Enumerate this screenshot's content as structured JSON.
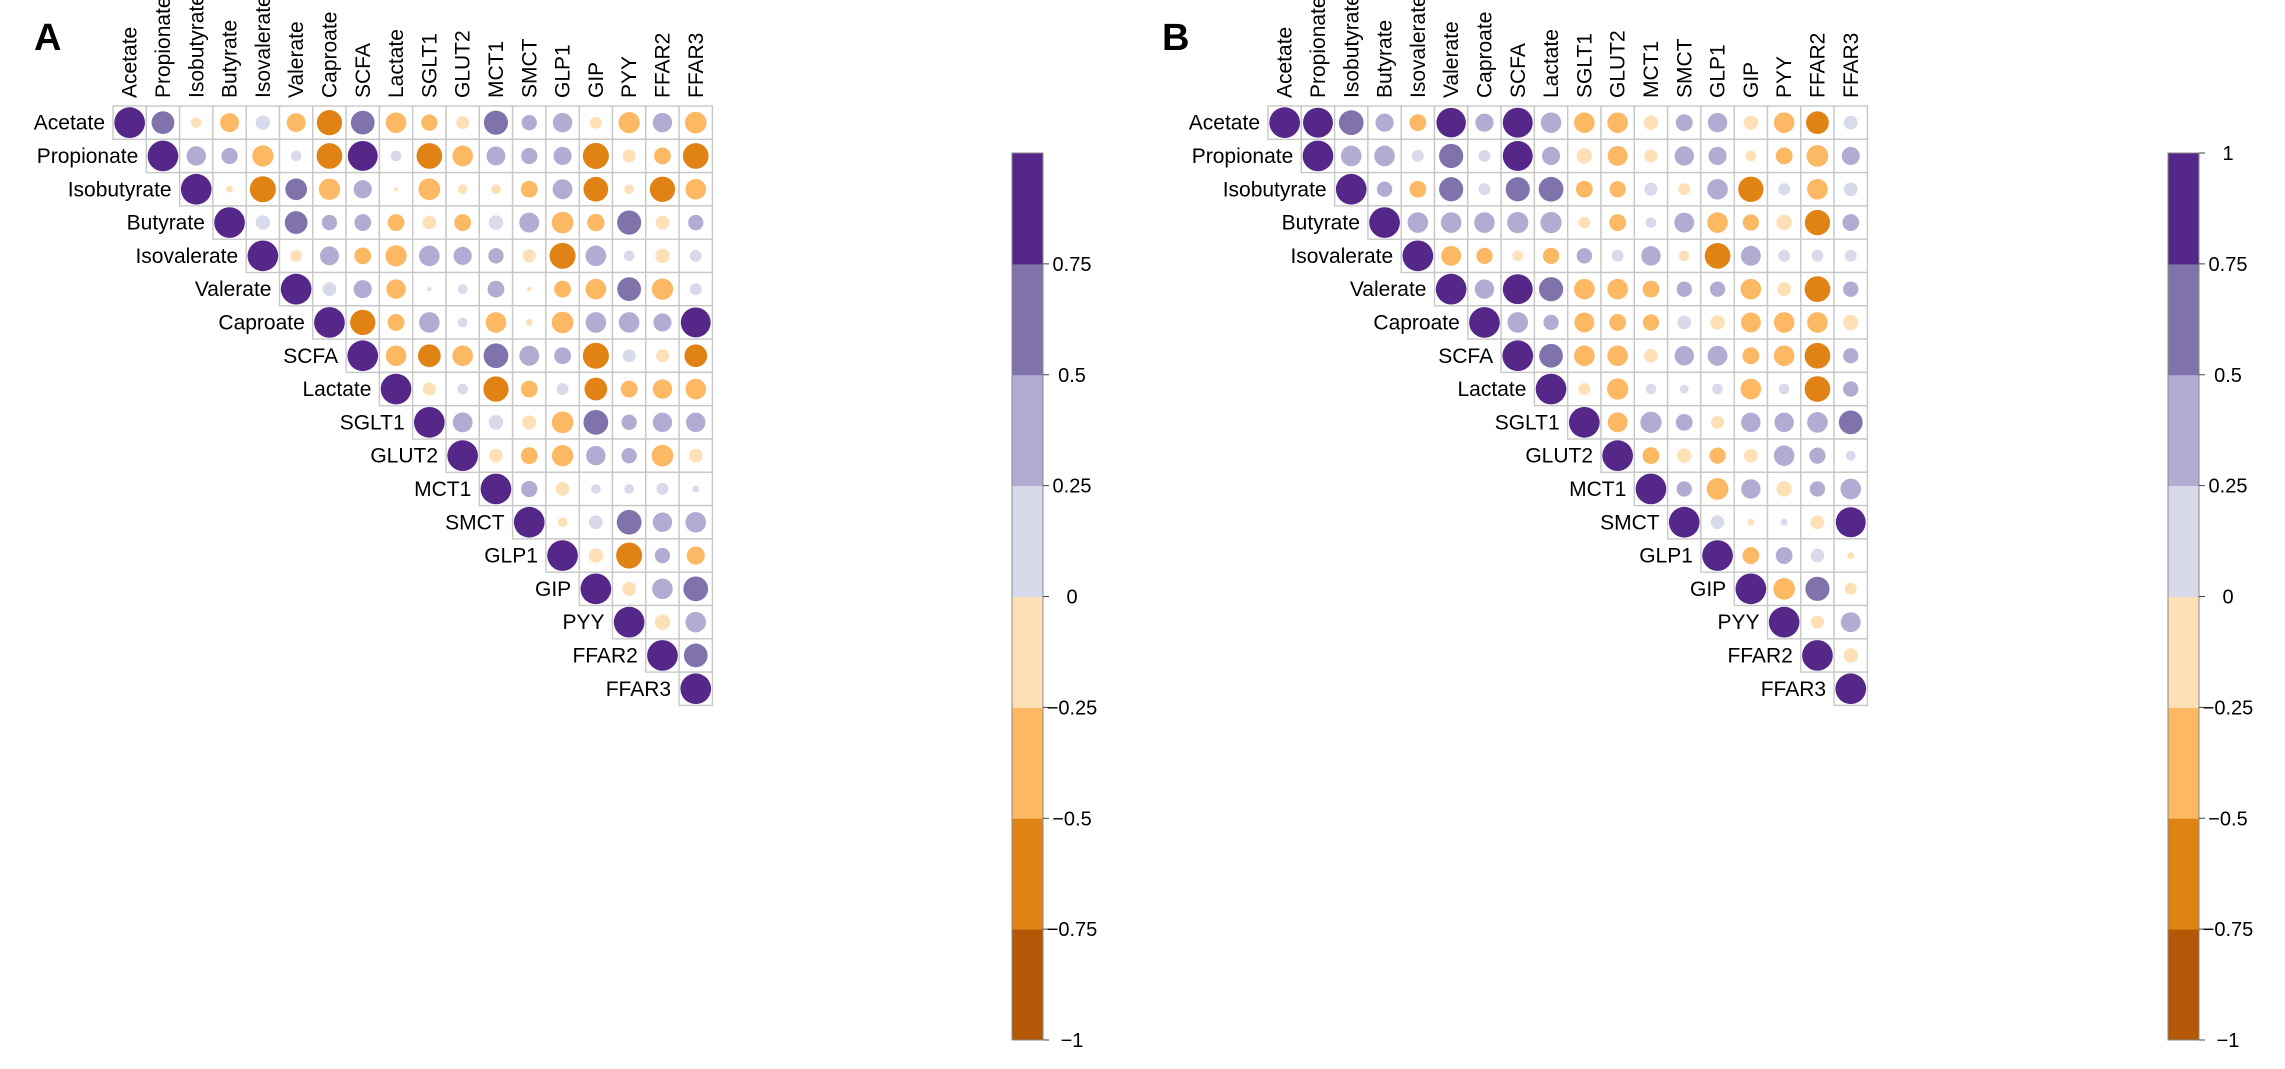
{
  "colors": {
    "bin_colors": [
      "#b35806",
      "#e08214",
      "#fdb863",
      "#fee0b6",
      "#d8daeb",
      "#b2abd2",
      "#8073ac",
      "#542788"
    ],
    "grid": "#c8c8c8",
    "background": "#ffffff"
  },
  "chart_data": [
    {
      "type": "heatmap",
      "subtype": "correlation-circle-upper-triangle",
      "panel_label": "A",
      "variables": [
        "Acetate",
        "Propionate",
        "Isobutyrate",
        "Butyrate",
        "Isovalerate",
        "Valerate",
        "Caproate",
        "SCFA",
        "Lactate",
        "SGLT1",
        "GLUT2",
        "MCT1",
        "SMCT",
        "GLP1",
        "GIP",
        "PYY",
        "FFAR2",
        "FFAR3"
      ],
      "colorbar": {
        "range": [
          -1,
          1
        ],
        "ticks": [
          0.75,
          0.5,
          0.25,
          0,
          -0.25,
          -0.5,
          -0.75,
          -1
        ],
        "tick_labels": [
          "0.75",
          "0.5",
          "0.25",
          "0",
          "−0.25",
          "−0.5",
          "−0.75",
          "−1"
        ]
      },
      "matrix": [
        [
          1,
          0.55,
          -0.12,
          -0.38,
          0.22,
          -0.38,
          -0.68,
          0.6,
          -0.45,
          -0.28,
          -0.18,
          0.62,
          0.25,
          0.4,
          -0.15,
          -0.48,
          0.4,
          -0.5
        ],
        [
          null,
          1,
          0.4,
          0.28,
          -0.48,
          0.12,
          -0.7,
          0.95,
          0.12,
          -0.7,
          -0.45,
          0.38,
          0.28,
          0.35,
          -0.72,
          -0.18,
          -0.3,
          -0.7
        ],
        [
          null,
          null,
          1,
          -0.05,
          -0.72,
          0.5,
          -0.48,
          0.35,
          -0.02,
          -0.5,
          -0.1,
          -0.1,
          -0.3,
          0.42,
          -0.65,
          -0.1,
          -0.68,
          -0.45
        ],
        [
          null,
          null,
          null,
          1,
          0.22,
          0.55,
          0.25,
          0.3,
          -0.3,
          -0.2,
          -0.3,
          0.22,
          0.42,
          -0.5,
          -0.32,
          0.62,
          -0.2,
          0.25
        ],
        [
          null,
          null,
          null,
          null,
          1,
          -0.15,
          0.38,
          -0.3,
          -0.48,
          0.45,
          0.35,
          0.25,
          -0.18,
          -0.72,
          0.45,
          0.12,
          -0.22,
          0.15
        ],
        [
          null,
          null,
          null,
          null,
          null,
          1,
          0.2,
          0.35,
          -0.4,
          0.02,
          0.1,
          0.3,
          -0.02,
          -0.3,
          -0.45,
          0.6,
          -0.48,
          0.15
        ],
        [
          null,
          null,
          null,
          null,
          null,
          null,
          1,
          -0.68,
          -0.3,
          0.45,
          0.1,
          -0.45,
          -0.05,
          -0.5,
          0.45,
          0.45,
          0.35,
          0.95
        ],
        [
          null,
          null,
          null,
          null,
          null,
          null,
          null,
          1,
          -0.45,
          -0.55,
          -0.45,
          0.65,
          0.42,
          0.3,
          -0.72,
          0.18,
          -0.18,
          -0.55
        ],
        [
          null,
          null,
          null,
          null,
          null,
          null,
          null,
          null,
          1,
          -0.18,
          0.12,
          -0.68,
          -0.3,
          0.15,
          -0.55,
          -0.3,
          -0.4,
          -0.45
        ],
        [
          null,
          null,
          null,
          null,
          null,
          null,
          null,
          null,
          null,
          1,
          0.42,
          0.22,
          -0.2,
          -0.5,
          0.65,
          0.25,
          0.4,
          0.4
        ],
        [
          null,
          null,
          null,
          null,
          null,
          null,
          null,
          null,
          null,
          null,
          1,
          -0.2,
          -0.3,
          -0.48,
          0.4,
          0.25,
          -0.5,
          -0.2
        ],
        [
          null,
          null,
          null,
          null,
          null,
          null,
          null,
          null,
          null,
          null,
          null,
          1,
          0.28,
          -0.2,
          0.1,
          0.1,
          0.15,
          0.05
        ],
        [
          null,
          null,
          null,
          null,
          null,
          null,
          null,
          null,
          null,
          null,
          null,
          null,
          1,
          -0.1,
          0.2,
          0.65,
          0.4,
          0.45
        ],
        [
          null,
          null,
          null,
          null,
          null,
          null,
          null,
          null,
          null,
          null,
          null,
          null,
          null,
          1,
          -0.22,
          -0.72,
          0.25,
          -0.35
        ],
        [
          null,
          null,
          null,
          null,
          null,
          null,
          null,
          null,
          null,
          null,
          null,
          null,
          null,
          null,
          1,
          -0.2,
          0.45,
          0.65
        ],
        [
          null,
          null,
          null,
          null,
          null,
          null,
          null,
          null,
          null,
          null,
          null,
          null,
          null,
          null,
          null,
          1,
          -0.25,
          0.45
        ],
        [
          null,
          null,
          null,
          null,
          null,
          null,
          null,
          null,
          null,
          null,
          null,
          null,
          null,
          null,
          null,
          null,
          1,
          0.6
        ],
        [
          null,
          null,
          null,
          null,
          null,
          null,
          null,
          null,
          null,
          null,
          null,
          null,
          null,
          null,
          null,
          null,
          null,
          1
        ]
      ]
    },
    {
      "type": "heatmap",
      "subtype": "correlation-circle-upper-triangle",
      "panel_label": "B",
      "variables": [
        "Acetate",
        "Propionate",
        "Isobutyrate",
        "Butyrate",
        "Isovalerate",
        "Valerate",
        "Caproate",
        "SCFA",
        "Lactate",
        "SGLT1",
        "GLUT2",
        "MCT1",
        "SMCT",
        "GLP1",
        "GIP",
        "PYY",
        "FFAR2",
        "FFAR3"
      ],
      "colorbar": {
        "range": [
          -1,
          1
        ],
        "ticks": [
          1,
          0.75,
          0.5,
          0.25,
          0,
          -0.25,
          -0.5,
          -0.75,
          -1
        ],
        "tick_labels": [
          "1",
          "0.75",
          "0.5",
          "0.25",
          "0",
          "−0.25",
          "−0.5",
          "−0.75",
          "−1"
        ]
      },
      "matrix": [
        [
          1,
          0.95,
          0.65,
          0.35,
          -0.3,
          0.92,
          0.35,
          0.95,
          0.45,
          -0.45,
          -0.45,
          -0.22,
          0.3,
          0.4,
          -0.22,
          -0.45,
          -0.55,
          0.2
        ],
        [
          null,
          1,
          0.45,
          0.45,
          0.15,
          0.62,
          0.15,
          0.95,
          0.35,
          -0.25,
          -0.42,
          -0.18,
          0.4,
          0.35,
          -0.12,
          -0.3,
          -0.5,
          0.35
        ],
        [
          null,
          null,
          1,
          0.25,
          -0.3,
          0.62,
          0.15,
          0.62,
          0.65,
          -0.3,
          -0.28,
          0.18,
          -0.15,
          0.45,
          -0.68,
          0.15,
          -0.45,
          0.2
        ],
        [
          null,
          null,
          null,
          1,
          0.45,
          0.45,
          0.45,
          0.48,
          0.48,
          -0.15,
          -0.3,
          0.12,
          0.42,
          -0.45,
          -0.28,
          -0.25,
          -0.68,
          0.3
        ],
        [
          null,
          null,
          null,
          null,
          1,
          -0.42,
          -0.28,
          -0.12,
          -0.28,
          0.25,
          0.15,
          0.4,
          -0.12,
          -0.7,
          0.42,
          0.15,
          0.15,
          0.15
        ],
        [
          null,
          null,
          null,
          null,
          null,
          1,
          0.4,
          0.95,
          0.62,
          -0.45,
          -0.45,
          -0.3,
          0.25,
          0.25,
          -0.45,
          -0.2,
          -0.7,
          0.25
        ],
        [
          null,
          null,
          null,
          null,
          null,
          null,
          1,
          0.45,
          0.25,
          -0.42,
          -0.3,
          -0.28,
          0.2,
          -0.22,
          -0.42,
          -0.45,
          -0.45,
          -0.25
        ],
        [
          null,
          null,
          null,
          null,
          null,
          null,
          null,
          1,
          0.6,
          -0.45,
          -0.45,
          -0.2,
          0.4,
          0.42,
          -0.3,
          -0.45,
          -0.7,
          0.25
        ],
        [
          null,
          null,
          null,
          null,
          null,
          null,
          null,
          null,
          1,
          -0.15,
          -0.48,
          0.12,
          0.08,
          0.12,
          -0.45,
          0.12,
          -0.7,
          0.25
        ],
        [
          null,
          null,
          null,
          null,
          null,
          null,
          null,
          null,
          null,
          1,
          -0.42,
          0.48,
          0.3,
          -0.18,
          0.4,
          0.4,
          0.45,
          0.6
        ],
        [
          null,
          null,
          null,
          null,
          null,
          null,
          null,
          null,
          null,
          null,
          1,
          -0.3,
          -0.22,
          -0.28,
          -0.2,
          0.45,
          0.28,
          0.1
        ],
        [
          null,
          null,
          null,
          null,
          null,
          null,
          null,
          null,
          null,
          null,
          null,
          1,
          0.25,
          -0.5,
          0.4,
          -0.25,
          0.25,
          0.45
        ],
        [
          null,
          null,
          null,
          null,
          null,
          null,
          null,
          null,
          null,
          null,
          null,
          null,
          1,
          0.2,
          -0.05,
          0.05,
          -0.2,
          0.95
        ],
        [
          null,
          null,
          null,
          null,
          null,
          null,
          null,
          null,
          null,
          null,
          null,
          null,
          null,
          1,
          -0.3,
          0.3,
          0.2,
          -0.05
        ],
        [
          null,
          null,
          null,
          null,
          null,
          null,
          null,
          null,
          null,
          null,
          null,
          null,
          null,
          null,
          1,
          -0.5,
          0.62,
          -0.15
        ],
        [
          null,
          null,
          null,
          null,
          null,
          null,
          null,
          null,
          null,
          null,
          null,
          null,
          null,
          null,
          null,
          1,
          -0.18,
          0.42
        ],
        [
          null,
          null,
          null,
          null,
          null,
          null,
          null,
          null,
          null,
          null,
          null,
          null,
          null,
          null,
          null,
          null,
          1,
          -0.22
        ],
        [
          null,
          null,
          null,
          null,
          null,
          null,
          null,
          null,
          null,
          null,
          null,
          null,
          null,
          null,
          null,
          null,
          null,
          1
        ]
      ]
    }
  ]
}
